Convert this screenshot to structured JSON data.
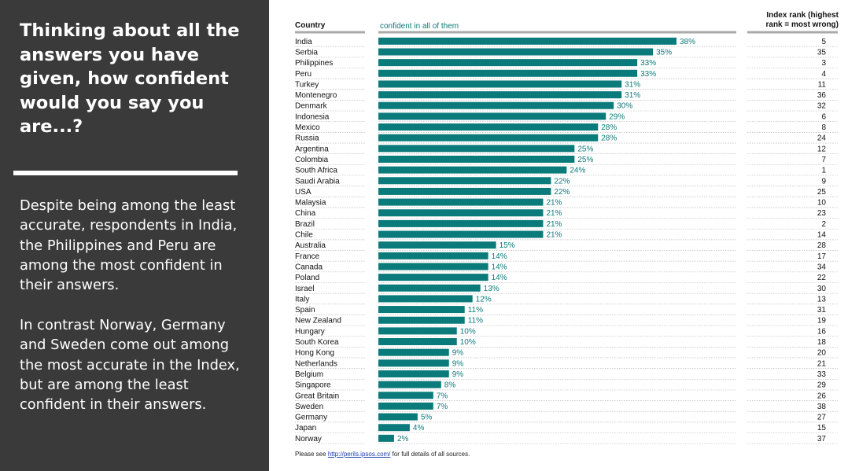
{
  "panel": {
    "question": "Thinking about all the answers you have given, how confident would you say you are...?",
    "paragraph1": "Despite being among the least accurate, respondents in India, the Philippines and Peru are among the most confident in their answers.",
    "paragraph2": "In contrast Norway, Germany and Sweden come out among the most accurate in the Index, but are among the least confident in their answers."
  },
  "footer": {
    "prefix": "Please see ",
    "link": "http://perils.ipsos.com/",
    "suffix": " for full details of all sources."
  },
  "colors": {
    "bar": "#0b7a7a",
    "panel": "#3a3a3a"
  },
  "chart_data": {
    "type": "bar",
    "orientation": "horizontal",
    "column_headers": {
      "country": "Country",
      "series": "confident in all of them",
      "rank_line1": "Index rank (highest",
      "rank_line2": "rank = most wrong)"
    },
    "categories": [
      "India",
      "Serbia",
      "Philippines",
      "Peru",
      "Turkey",
      "Montenegro",
      "Denmark",
      "Indonesia",
      "Mexico",
      "Russia",
      "Argentina",
      "Colombia",
      "South Africa",
      "Saudi Arabia",
      "USA",
      "Malaysia",
      "China",
      "Brazil",
      "Chile",
      "Australia",
      "France",
      "Canada",
      "Poland",
      "Israel",
      "Italy",
      "Spain",
      "New Zealand",
      "Hungary",
      "South Korea",
      "Hong Kong",
      "Netherlands",
      "Belgium",
      "Singapore",
      "Great Britain",
      "Sweden",
      "Germany",
      "Japan",
      "Norway"
    ],
    "series": [
      {
        "name": "confident in all of them",
        "values": [
          38,
          35,
          33,
          33,
          31,
          31,
          30,
          29,
          28,
          28,
          25,
          25,
          24,
          22,
          22,
          21,
          21,
          21,
          21,
          15,
          14,
          14,
          14,
          13,
          12,
          11,
          11,
          10,
          10,
          9,
          9,
          9,
          8,
          7,
          7,
          5,
          4,
          2
        ]
      }
    ],
    "value_labels": [
      "38%",
      "35%",
      "33%",
      "33%",
      "31%",
      "31%",
      "30%",
      "29%",
      "28%",
      "28%",
      "25%",
      "25%",
      "24%",
      "22%",
      "22%",
      "21%",
      "21%",
      "21%",
      "21%",
      "15%",
      "14%",
      "14%",
      "14%",
      "13%",
      "12%",
      "11%",
      "11%",
      "10%",
      "10%",
      "9%",
      "9%",
      "9%",
      "8%",
      "7%",
      "7%",
      "5%",
      "4%",
      "2%"
    ],
    "index_rank": [
      5,
      35,
      3,
      4,
      11,
      36,
      32,
      6,
      8,
      24,
      12,
      7,
      1,
      9,
      25,
      10,
      23,
      2,
      14,
      28,
      17,
      34,
      22,
      30,
      13,
      31,
      19,
      16,
      18,
      20,
      21,
      33,
      29,
      26,
      38,
      27,
      15,
      37
    ],
    "xlim": [
      0,
      38
    ],
    "unit": "%",
    "grid": false,
    "legend": "none"
  }
}
